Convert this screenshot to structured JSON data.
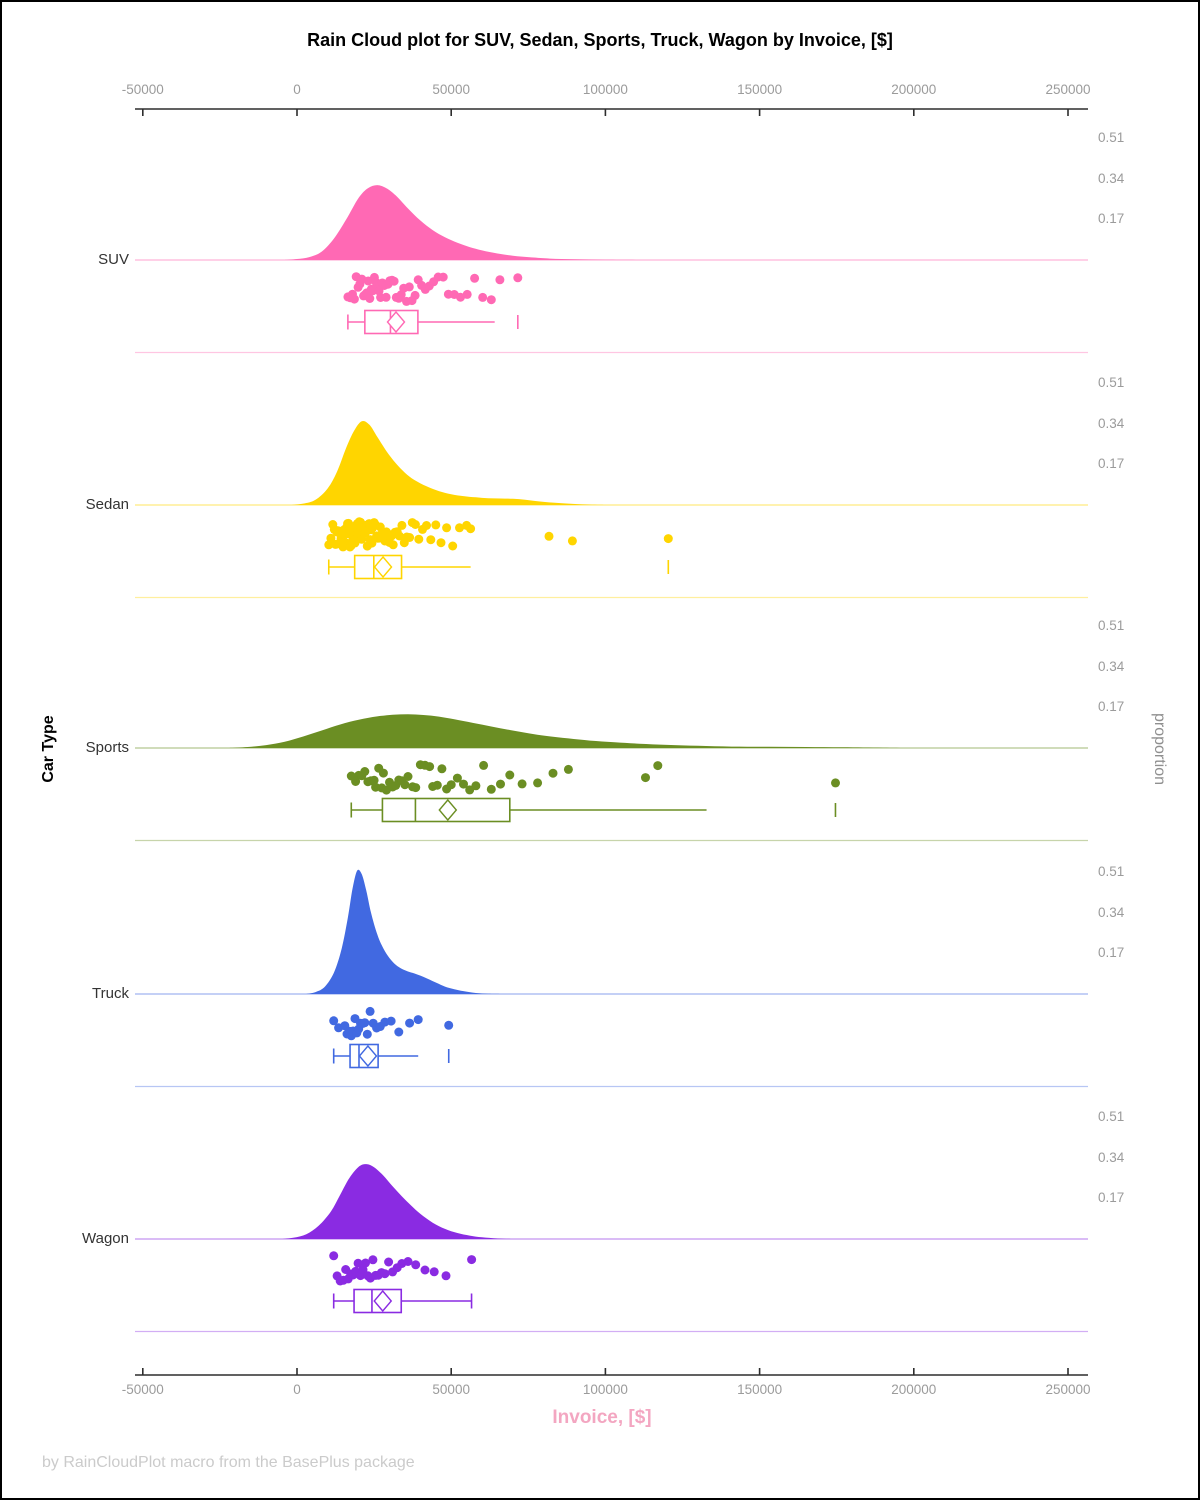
{
  "title": "Rain Cloud plot for SUV, Sedan, Sports, Truck, Wagon by Invoice, [$]",
  "footer": "by RainCloudPlot macro from the BasePlus package",
  "chart_data": {
    "type": "raincloud",
    "x_axis": {
      "label": "Invoice, [$]",
      "ticks": [
        -50000,
        0,
        50000,
        100000,
        150000,
        200000,
        250000
      ],
      "tick_labels": [
        "-50000",
        "0",
        "50000",
        "100000",
        "150000",
        "200000",
        "250000"
      ],
      "range": [
        -52500,
        256500
      ]
    },
    "y_axis_left": {
      "label": "Car Type"
    },
    "y_axis_right": {
      "label": "proportion",
      "ticks": [
        0.51,
        0.34,
        0.17
      ],
      "tick_labels": [
        "0.51",
        "0.34",
        "0.17"
      ]
    },
    "categories": [
      {
        "name": "SUV",
        "color": "#ff69b4",
        "density": {
          "x": [
            -4000,
            0,
            4000,
            8000,
            12000,
            16000,
            20000,
            23000,
            26000,
            29000,
            32000,
            36000,
            40000,
            44000,
            48000,
            52000,
            56000,
            60000,
            65000,
            70000,
            76000,
            82000,
            90000,
            100000,
            112000
          ],
          "p": [
            0,
            0.004,
            0.012,
            0.035,
            0.09,
            0.17,
            0.26,
            0.3,
            0.313,
            0.3,
            0.27,
            0.215,
            0.165,
            0.125,
            0.095,
            0.072,
            0.054,
            0.04,
            0.027,
            0.018,
            0.011,
            0.006,
            0.003,
            0.001,
            0
          ]
        },
        "points": [
          16500,
          17300,
          18000,
          18600,
          19200,
          19800,
          20400,
          21000,
          21600,
          22100,
          22600,
          23100,
          23600,
          24100,
          24600,
          25100,
          25600,
          26100,
          26600,
          27100,
          27700,
          28300,
          28900,
          29500,
          30100,
          30800,
          31500,
          32200,
          33000,
          33800,
          34600,
          35500,
          36400,
          37300,
          38300,
          39300,
          40400,
          41600,
          42900,
          44300,
          45800,
          47400,
          49100,
          51000,
          53000,
          55200,
          57600,
          60200,
          63000,
          65800,
          71600
        ],
        "box": {
          "whisker_low": 16500,
          "q1": 22000,
          "median": 30300,
          "q3": 39200,
          "whisker_high": 64100,
          "mean": 32100,
          "max_tick": 71600,
          "cap_high": false
        }
      },
      {
        "name": "Sedan",
        "color": "#ffd500",
        "density": {
          "x": [
            -2000,
            2000,
            6000,
            10000,
            13000,
            16000,
            18500,
            21000,
            23500,
            26000,
            29000,
            32000,
            35000,
            38000,
            42000,
            46000,
            50000,
            54000,
            58000,
            62000,
            66000,
            70000,
            74000,
            78000,
            83000,
            88000,
            94000,
            100000
          ],
          "p": [
            0,
            0.006,
            0.022,
            0.07,
            0.14,
            0.24,
            0.31,
            0.35,
            0.335,
            0.285,
            0.225,
            0.175,
            0.135,
            0.105,
            0.078,
            0.058,
            0.045,
            0.037,
            0.032,
            0.028,
            0.027,
            0.026,
            0.022,
            0.016,
            0.01,
            0.006,
            0.002,
            0
          ]
        },
        "points": [
          10300,
          11000,
          11600,
          12100,
          12500,
          12900,
          13300,
          13700,
          14000,
          14300,
          14600,
          14900,
          15200,
          15500,
          15800,
          16100,
          16400,
          16700,
          17000,
          17200,
          17400,
          17600,
          17800,
          18000,
          18200,
          18400,
          18600,
          18800,
          19000,
          19200,
          19400,
          19600,
          19800,
          20000,
          20200,
          20400,
          20600,
          20800,
          21000,
          21300,
          21600,
          21900,
          22200,
          22500,
          22800,
          23100,
          23400,
          23700,
          24000,
          24300,
          24600,
          25000,
          25400,
          25800,
          26200,
          26600,
          27000,
          27500,
          28000,
          28500,
          29000,
          29500,
          30000,
          30600,
          31200,
          31800,
          32500,
          33200,
          34000,
          34800,
          35600,
          36500,
          37400,
          38400,
          39500,
          40700,
          42000,
          43400,
          45000,
          46700,
          48500,
          50500,
          52700,
          55000,
          56300,
          81700,
          89300,
          120400
        ],
        "box": {
          "whisker_low": 10300,
          "q1": 18700,
          "median": 24900,
          "q3": 33900,
          "whisker_high": 56300,
          "mean": 27900,
          "max_tick": 120400,
          "cap_high": false
        }
      },
      {
        "name": "Sports",
        "color": "#6b8e23",
        "density": {
          "x": [
            -22000,
            -16000,
            -10000,
            -4000,
            2000,
            8000,
            14000,
            20000,
            26000,
            31000,
            36000,
            41000,
            46000,
            51000,
            57000,
            63000,
            69000,
            75000,
            81000,
            88000,
            95000,
            103000,
            111000,
            120000,
            130000,
            141000,
            153000,
            165000,
            177000,
            190000,
            200000
          ],
          "p": [
            0,
            0.004,
            0.012,
            0.026,
            0.048,
            0.073,
            0.098,
            0.118,
            0.132,
            0.139,
            0.141,
            0.138,
            0.131,
            0.12,
            0.105,
            0.09,
            0.075,
            0.062,
            0.05,
            0.04,
            0.031,
            0.024,
            0.018,
            0.013,
            0.009,
            0.006,
            0.005,
            0.004,
            0.003,
            0.001,
            0
          ]
        },
        "points": [
          17600,
          19000,
          20000,
          21000,
          22000,
          23000,
          24000,
          25000,
          25500,
          26500,
          27500,
          28000,
          29000,
          30000,
          31000,
          32000,
          33000,
          34000,
          35000,
          36000,
          37500,
          38500,
          40000,
          41500,
          43000,
          44000,
          45500,
          47000,
          48500,
          50000,
          52000,
          54000,
          56000,
          58000,
          60500,
          63000,
          66000,
          69000,
          73000,
          78000,
          83000,
          88000,
          113000,
          117000,
          174600
        ],
        "box": {
          "whisker_low": 17600,
          "q1": 27700,
          "median": 38400,
          "q3": 69000,
          "whisker_high": 132800,
          "mean": 48900,
          "max_tick": 174600,
          "cap_high": false
        }
      },
      {
        "name": "Truck",
        "color": "#4169e1",
        "density": {
          "x": [
            3000,
            6000,
            9000,
            12000,
            14500,
            16500,
            18000,
            19500,
            21000,
            22500,
            24000,
            26000,
            28000,
            30000,
            32000,
            34000,
            36000,
            38000,
            40000,
            42000,
            44000,
            46000,
            48000,
            51000,
            54000,
            58000,
            62000,
            66000
          ],
          "p": [
            0,
            0.008,
            0.03,
            0.09,
            0.19,
            0.32,
            0.44,
            0.515,
            0.5,
            0.43,
            0.34,
            0.25,
            0.19,
            0.15,
            0.122,
            0.105,
            0.094,
            0.086,
            0.077,
            0.066,
            0.054,
            0.042,
            0.031,
            0.02,
            0.012,
            0.004,
            0.001,
            0
          ]
        },
        "points": [
          11900,
          13500,
          15500,
          16200,
          17000,
          17600,
          18200,
          18800,
          19400,
          20000,
          20600,
          21300,
          22000,
          22800,
          23700,
          24700,
          25800,
          27000,
          28500,
          30500,
          33000,
          36500,
          39300,
          49200
        ],
        "box": {
          "whisker_low": 11900,
          "q1": 17200,
          "median": 20100,
          "q3": 26300,
          "whisker_high": 39300,
          "mean": 23000,
          "max_tick": 49200,
          "cap_high": false
        }
      },
      {
        "name": "Wagon",
        "color": "#8a2be2",
        "density": {
          "x": [
            -5000,
            -1000,
            3000,
            7000,
            11000,
            14000,
            17000,
            20000,
            22500,
            25000,
            28000,
            31000,
            34000,
            37000,
            40000,
            44000,
            48000,
            52000,
            56000,
            60000,
            65000,
            70000
          ],
          "p": [
            0,
            0.006,
            0.02,
            0.055,
            0.115,
            0.185,
            0.255,
            0.302,
            0.313,
            0.3,
            0.265,
            0.22,
            0.178,
            0.14,
            0.105,
            0.068,
            0.042,
            0.025,
            0.014,
            0.007,
            0.002,
            0
          ]
        },
        "points": [
          11900,
          13000,
          14000,
          15000,
          15800,
          16600,
          17400,
          18200,
          19000,
          19800,
          20600,
          21400,
          22200,
          23000,
          23800,
          24600,
          25500,
          26400,
          27400,
          28500,
          29700,
          31000,
          32500,
          34000,
          36000,
          38500,
          41500,
          44500,
          48300,
          56600
        ],
        "box": {
          "whisker_low": 11900,
          "q1": 18500,
          "median": 24300,
          "q3": 33800,
          "whisker_high": 56600,
          "mean": 27800,
          "max_tick": null,
          "cap_high": true
        }
      }
    ]
  }
}
